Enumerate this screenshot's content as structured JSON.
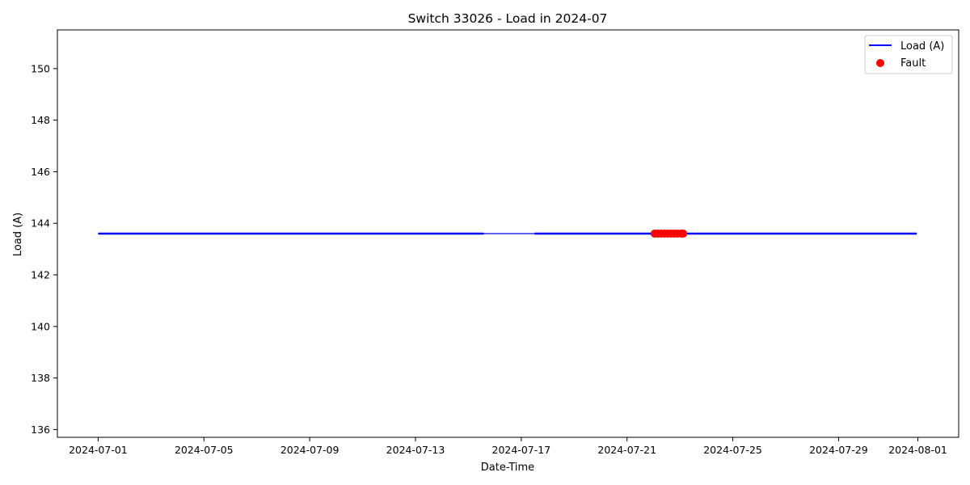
{
  "chart_data": {
    "type": "line",
    "title": "Switch 33026 - Load in 2024-07",
    "xlabel": "Date-Time",
    "ylabel": "Load (A)",
    "xlim": [
      "2024-06-29T11:00",
      "2024-08-02T13:00"
    ],
    "ylim": [
      135.7,
      151.5
    ],
    "x_ticks": [
      "2024-07-01",
      "2024-07-05",
      "2024-07-09",
      "2024-07-13",
      "2024-07-17",
      "2024-07-21",
      "2024-07-25",
      "2024-07-29",
      "2024-08-01"
    ],
    "y_ticks": [
      136,
      138,
      140,
      142,
      144,
      146,
      148,
      150
    ],
    "grid": false,
    "legend_position": "top-right",
    "series": [
      {
        "name": "Load (A)",
        "kind": "line",
        "color": "#0000ff",
        "segments": [
          {
            "x": [
              "2024-07-01T00:00",
              "2024-07-15T14:00"
            ],
            "y": [
              143.6,
              143.6
            ],
            "weight": "bold"
          },
          {
            "x": [
              "2024-07-15T14:00",
              "2024-07-17T12:00"
            ],
            "y": [
              143.6,
              143.6
            ],
            "weight": "thin"
          },
          {
            "x": [
              "2024-07-17T12:00",
              "2024-07-31T23:00"
            ],
            "y": [
              143.6,
              143.6
            ],
            "weight": "bold"
          }
        ]
      },
      {
        "name": "Fault",
        "kind": "scatter",
        "color": "#ff0000",
        "x": [
          "2024-07-22T01:00",
          "2024-07-22T04:00",
          "2024-07-22T07:00",
          "2024-07-22T10:00",
          "2024-07-22T13:00",
          "2024-07-22T16:00",
          "2024-07-22T19:00",
          "2024-07-22T22:00",
          "2024-07-23T01:00",
          "2024-07-23T03:00"
        ],
        "y": [
          143.6,
          143.6,
          143.6,
          143.6,
          143.6,
          143.6,
          143.6,
          143.6,
          143.6,
          143.6
        ]
      }
    ]
  }
}
